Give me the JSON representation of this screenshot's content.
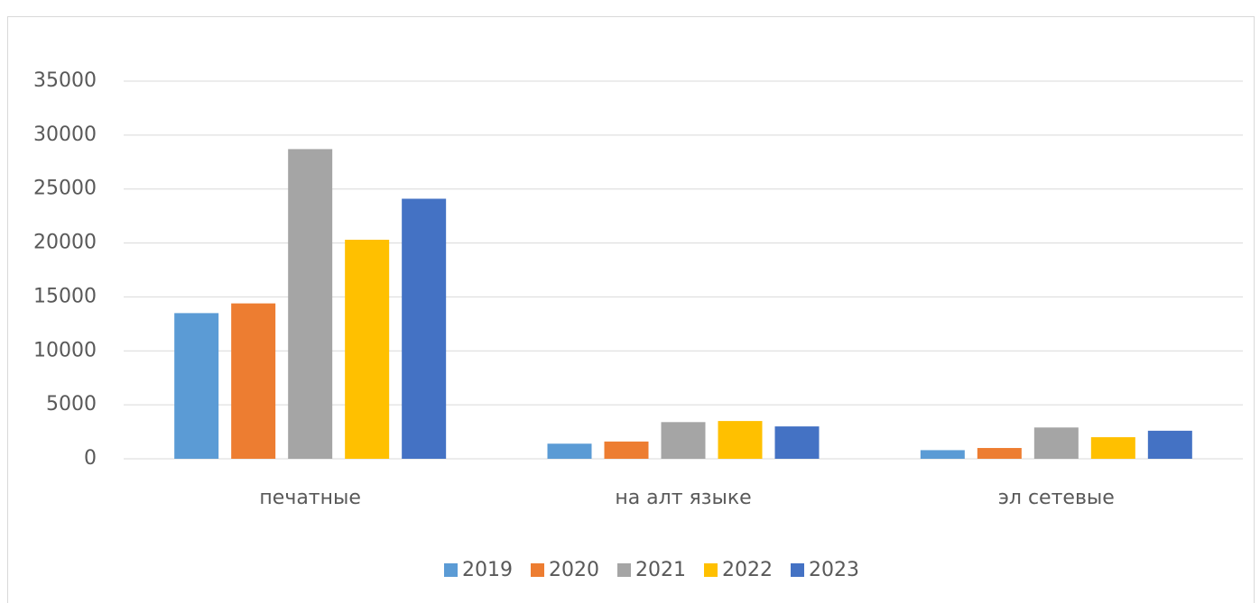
{
  "chart_data": {
    "type": "bar",
    "categories": [
      "печатные",
      "на алт языке",
      "эл сетевые"
    ],
    "series": [
      {
        "name": "2019",
        "color": "#5b9bd5",
        "values": [
          13500,
          1400,
          800
        ]
      },
      {
        "name": "2020",
        "color": "#ed7d31",
        "values": [
          14400,
          1600,
          1000
        ]
      },
      {
        "name": "2021",
        "color": "#a5a5a5",
        "values": [
          28700,
          3400,
          2900
        ]
      },
      {
        "name": "2022",
        "color": "#ffc000",
        "values": [
          20300,
          3500,
          2000
        ]
      },
      {
        "name": "2023",
        "color": "#4472c4",
        "values": [
          24100,
          3000,
          2600
        ]
      }
    ],
    "ylim": [
      0,
      35000
    ],
    "yticks": [
      0,
      5000,
      10000,
      15000,
      20000,
      25000,
      30000,
      35000
    ],
    "grid": true,
    "legend": "bottom"
  }
}
